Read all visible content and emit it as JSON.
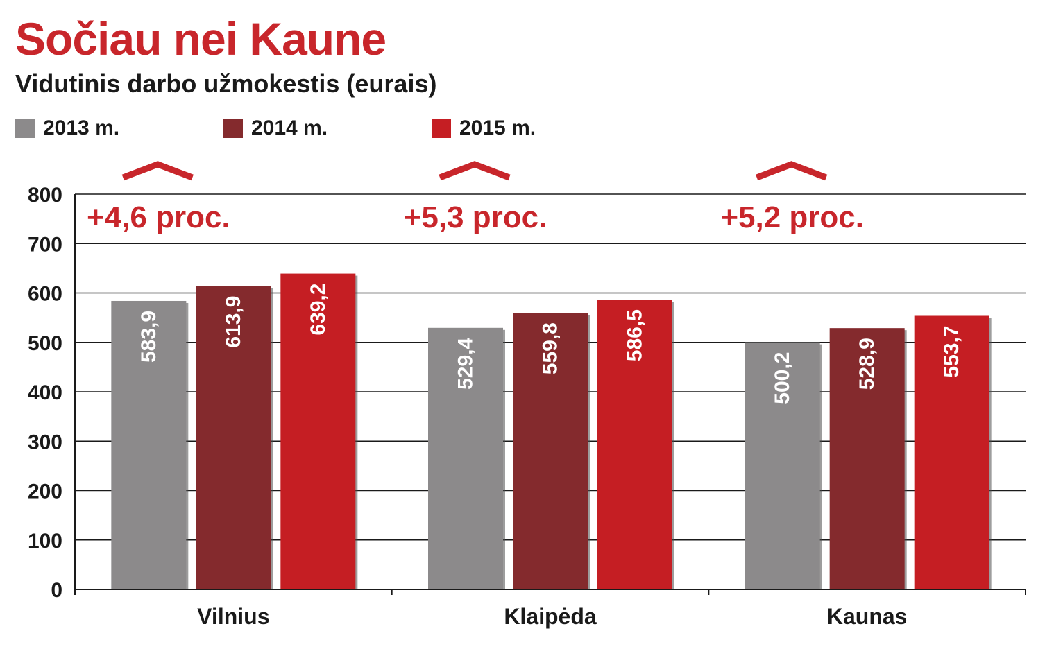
{
  "chart_data": {
    "type": "bar",
    "title": "Sočiau nei Kaune",
    "subtitle": "Vidutinis darbo užmokestis (eurais)",
    "categories": [
      "Vilnius",
      "Klaipėda",
      "Kaunas"
    ],
    "series": [
      {
        "name": "2013 m.",
        "color": "#8c8a8b",
        "values": [
          583.9,
          529.4,
          500.2
        ],
        "labels": [
          "583,9",
          "529,4",
          "500,2"
        ]
      },
      {
        "name": "2014 m.",
        "color": "#842a2d",
        "values": [
          613.9,
          559.8,
          528.9
        ],
        "labels": [
          "613,9",
          "559,8",
          "528,9"
        ]
      },
      {
        "name": "2015 m.",
        "color": "#c51e23",
        "values": [
          639.2,
          586.5,
          553.7
        ],
        "labels": [
          "639,2",
          "586,5",
          "553,7"
        ]
      }
    ],
    "annotations": [
      "+4,6 proc.",
      "+5,3 proc.",
      "+5,2 proc."
    ],
    "ylim": [
      0,
      800
    ],
    "yticks": [
      "0",
      "100",
      "200",
      "300",
      "400",
      "500",
      "600",
      "700",
      "800"
    ],
    "grid": true,
    "legend_position": "top-left"
  }
}
